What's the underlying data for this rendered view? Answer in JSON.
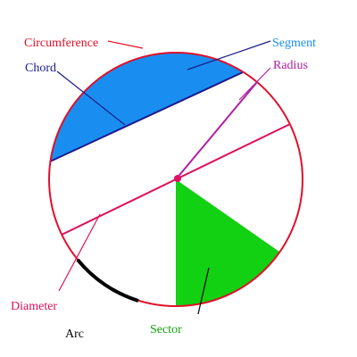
{
  "labels": {
    "circumference": "Circumference",
    "segment": "Segment",
    "chord": "Chord",
    "radius": "Radius",
    "diameter": "Diameter",
    "arc": "Arc",
    "sector": "Sector"
  }
}
